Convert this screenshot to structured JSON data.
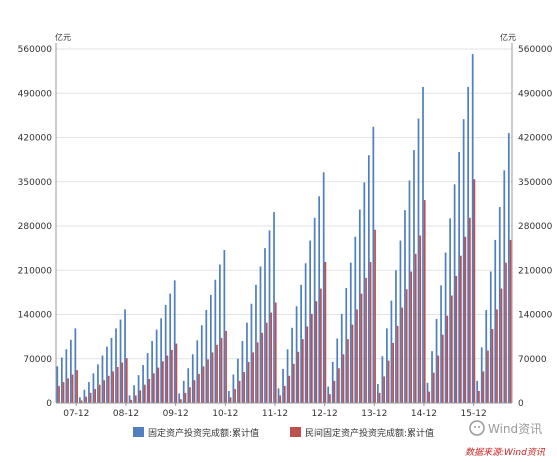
{
  "chart_data": {
    "type": "bar",
    "unit_left": "亿元",
    "unit_right": "亿元",
    "ylim": [
      0,
      560000
    ],
    "yticks": [
      "0",
      "70000",
      "140000",
      "210000",
      "280000",
      "350000",
      "420000",
      "490000",
      "560000"
    ],
    "grid": true,
    "legend_position": "bottom",
    "colors": {
      "total": "#4f7fbf",
      "private": "#c0504d",
      "axis": "#999999"
    },
    "x_tick_labels": [
      "07-12",
      "08-12",
      "09-12",
      "10-12",
      "11-12",
      "12-12",
      "13-12",
      "14-12",
      "15-12"
    ],
    "series": [
      {
        "name": "固定资产投资完成额:累计值",
        "values": [
          58000,
          72000,
          85000,
          100000,
          118000,
          9000,
          21000,
          33000,
          47000,
          61000,
          75000,
          89000,
          103000,
          118000,
          132000,
          148000,
          12000,
          28000,
          44000,
          60000,
          79000,
          98000,
          116000,
          134000,
          155000,
          173000,
          194000,
          15000,
          35000,
          55000,
          77000,
          99000,
          123000,
          147000,
          171000,
          195000,
          219000,
          242000,
          19000,
          45000,
          70000,
          98000,
          127000,
          157000,
          187000,
          216000,
          245000,
          273000,
          302000,
          23000,
          54000,
          85000,
          119000,
          153000,
          187000,
          221000,
          257000,
          293000,
          327000,
          365000,
          26000,
          65000,
          102000,
          141000,
          182000,
          222000,
          263000,
          306000,
          349000,
          392000,
          437000,
          30000,
          74000,
          118000,
          162000,
          210000,
          257000,
          305000,
          352000,
          400000,
          450000,
          500000,
          32000,
          82000,
          133000,
          186000,
          238000,
          292000,
          346000,
          397000,
          449000,
          500000,
          552000,
          35000,
          88000,
          147000,
          208000,
          258000,
          310000,
          368000,
          427000
        ]
      },
      {
        "name": "民间固定资产投资完成额:累计值",
        "values": [
          27000,
          33000,
          39000,
          45000,
          52000,
          4000,
          10000,
          16000,
          22000,
          29000,
          36000,
          43000,
          50000,
          57000,
          64000,
          71000,
          5000,
          12000,
          20000,
          29000,
          38000,
          47000,
          56000,
          66000,
          75000,
          84000,
          94000,
          6000,
          16000,
          25000,
          36000,
          46000,
          58000,
          69000,
          80000,
          92000,
          103000,
          114000,
          9000,
          22000,
          35000,
          49000,
          65000,
          80000,
          96000,
          111000,
          127000,
          143000,
          159000,
          12000,
          27000,
          43000,
          62000,
          81000,
          101000,
          121000,
          141000,
          161000,
          181000,
          223000,
          14000,
          35000,
          55000,
          77000,
          101000,
          124000,
          148000,
          173000,
          198000,
          223000,
          274000,
          16000,
          42000,
          67000,
          95000,
          122000,
          151000,
          180000,
          208000,
          236000,
          265000,
          321000,
          18000,
          48000,
          75000,
          108000,
          138000,
          170000,
          201000,
          233000,
          263000,
          293000,
          354000,
          19000,
          50000,
          83000,
          117000,
          148000,
          181000,
          222000,
          258000
        ]
      }
    ],
    "source": "数据来源:Wind资讯",
    "watermark": "Wind资讯"
  }
}
